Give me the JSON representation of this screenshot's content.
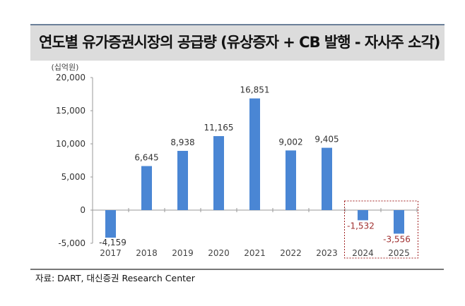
{
  "title": "연도별 유가증권시장의 공급량 (유상증자 + CB 발행 - 자사주 소각)",
  "source": "자료: DART, 대신증권 Research Center",
  "chart_data": {
    "type": "bar",
    "title": "연도별 유가증권시장의 공급량 (유상증자 + CB 발행 - 자사주 소각)",
    "ylabel": "(십억원)",
    "xlabel": "",
    "categories": [
      "2017",
      "2018",
      "2019",
      "2020",
      "2021",
      "2022",
      "2023",
      "2024",
      "2025"
    ],
    "values": [
      -4159,
      6645,
      8938,
      11165,
      16851,
      9002,
      9405,
      -1532,
      -3556
    ],
    "data_labels": [
      "-4,159",
      "6,645",
      "8,938",
      "11,165",
      "16,851",
      "9,002",
      "9,405",
      "-1,532",
      "-3,556"
    ],
    "ylim": [
      -5000,
      20000
    ],
    "yticks": [
      20000,
      15000,
      10000,
      5000,
      0,
      -5000
    ],
    "ytick_labels": [
      "20,000",
      "15,000",
      "10,000",
      "5,000",
      "0",
      "-5,000"
    ],
    "grid": false,
    "highlight_categories": [
      "2024",
      "2025"
    ],
    "colors": {
      "bar": "#4a86d4",
      "highlight_label": "#a03030",
      "highlight_box": "#a02020",
      "axis": "#999999"
    }
  }
}
